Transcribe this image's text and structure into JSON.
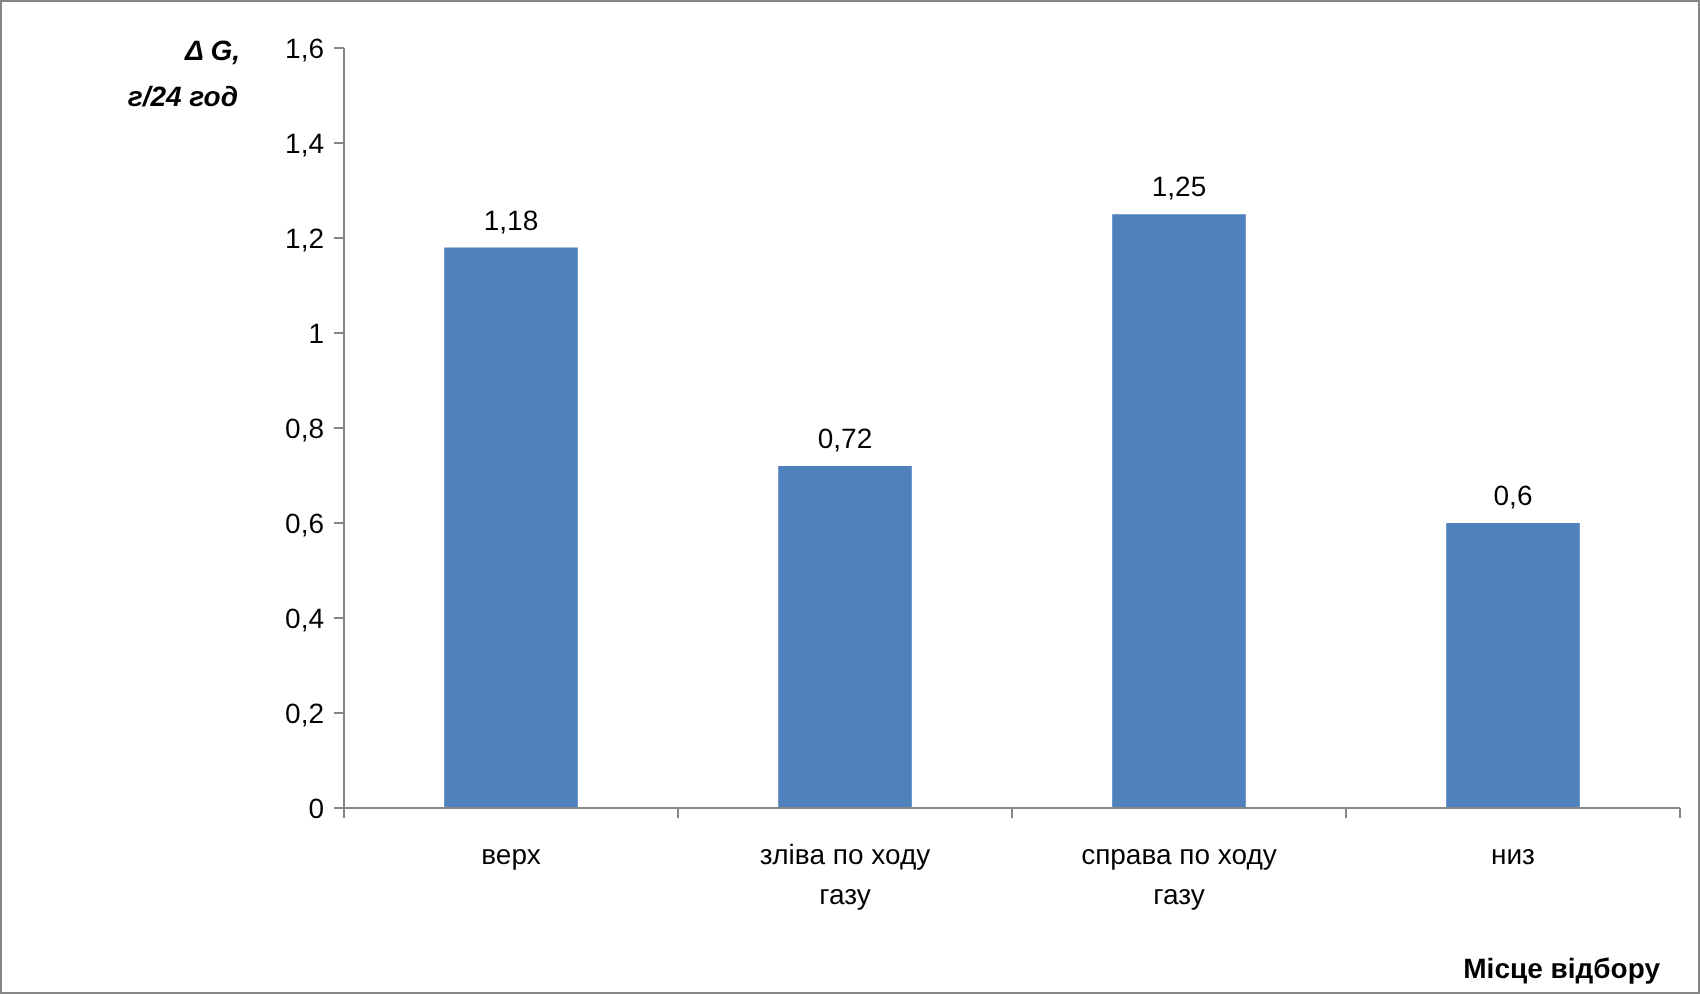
{
  "chart_data": {
    "type": "bar",
    "ylabel": "Δ G, г/24 год",
    "xlabel": "Місце відбору",
    "categories": [
      "верх",
      "зліва по ходу газу",
      "справа по ходу газу",
      "низ"
    ],
    "values": [
      1.18,
      0.72,
      1.25,
      0.6
    ],
    "color": "#4f81bd",
    "value_labels": [
      "1,18",
      "0,72",
      "1,25",
      "0,6"
    ],
    "ylim": [
      0,
      1.6
    ],
    "yticks": [
      0,
      {
        "value": 0.2,
        "label": "0,2"
      },
      {
        "value": 0.4,
        "label": "0,4"
      },
      {
        "value": 0.6,
        "label": "0,6"
      },
      {
        "value": 0.8,
        "label": "0,8"
      },
      1,
      {
        "value": 1.2,
        "label": "1,2"
      },
      {
        "value": 1.4,
        "label": "1,4"
      },
      {
        "value": 1.6,
        "label": "1,6"
      }
    ],
    "relative": false
  }
}
